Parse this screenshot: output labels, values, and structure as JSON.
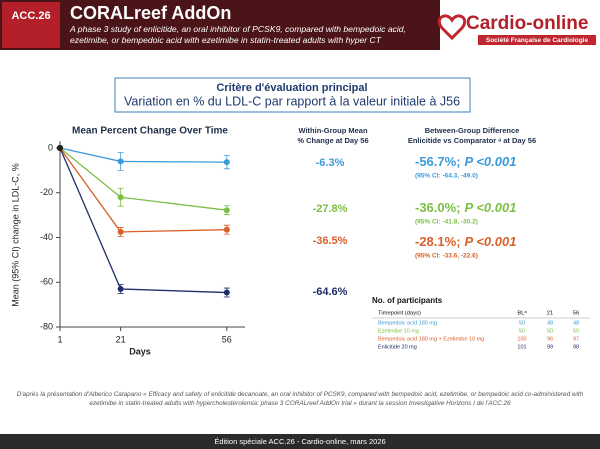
{
  "header": {
    "logo": "ACC.26",
    "title": "CORALreef AddOn",
    "subtitle": "A phase 3 study of enlicitide, an oral inhibitor of PCSK9, compared with bempedoic acid, ezetimibe, or bempedoic acid with ezetimibe in statin-treated adults with hyper CT",
    "brand": "Cardio-online",
    "brand_sub": "Société Française de Cardiologie"
  },
  "box": {
    "title": "Critère d'évaluation principal",
    "subtitle": "Variation en % du LDL-C par rapport à la valeur initiale à J56"
  },
  "chart_data": {
    "type": "line",
    "title": "Mean Percent Change Over Time",
    "y_label": "Mean (95% CI) change in LDL-C, %",
    "x_label": "Days",
    "x": [
      1,
      21,
      56
    ],
    "xlim": [
      1,
      62
    ],
    "xticks": [
      1,
      21,
      56
    ],
    "ylim": [
      -80,
      3
    ],
    "yticks": [
      0,
      -20,
      -40,
      -60,
      -80
    ],
    "series": [
      {
        "name": "Bempedoic acid 180 mg",
        "color": "#3b9bd8",
        "values": [
          0,
          -6,
          -6.3
        ],
        "errors": [
          0,
          4,
          3
        ],
        "value_labels": [
          null,
          null,
          "-6.3%"
        ]
      },
      {
        "name": "Ezetimibe 10 mg",
        "color": "#7cbf45",
        "values": [
          0,
          -22,
          -27.8
        ],
        "errors": [
          0,
          4,
          2
        ],
        "value_labels": [
          null,
          null,
          "-27.8%"
        ]
      },
      {
        "name": "Bempedoic acid 180 mg + Ezetimibe 10 mg",
        "color": "#d8602a",
        "values": [
          0,
          -37.5,
          -36.5
        ],
        "errors": [
          0,
          2,
          2
        ],
        "value_labels": [
          null,
          null,
          "-36.5%"
        ]
      },
      {
        "name": "Enlicitide 20 mg",
        "color": "#1f2e6a",
        "values": [
          0,
          -63,
          -64.6
        ],
        "errors": [
          0,
          2,
          2
        ],
        "value_labels": [
          null,
          null,
          "-64.6%"
        ]
      }
    ]
  },
  "within_group": {
    "header": [
      "Within-Group Mean",
      "% Change at Day 56"
    ]
  },
  "between_group": {
    "header": [
      "Between-Group Difference",
      "Enlicitide vs Comparator ᵃ at Day 56"
    ],
    "rows": [
      {
        "difference": "-56.7%;",
        "p": "P <0.001",
        "ci": "(95% CI: -64.3, -49.0)"
      },
      {
        "difference": "-36.0%;",
        "p": "P <0.001",
        "ci": "(95% CI: -41.8, -30.2)"
      },
      {
        "difference": "-28.1%;",
        "p": "P <0.001",
        "ci": "(95% CI: -33.6, -22.6)"
      }
    ]
  },
  "participants": {
    "title": "No. of participants",
    "columns": [
      "Timepoint (days)",
      "BLᵃ",
      "21",
      "56"
    ],
    "rows": [
      [
        50,
        48,
        48
      ],
      [
        50,
        50,
        50
      ],
      [
        100,
        96,
        97
      ],
      [
        101,
        99,
        98
      ]
    ]
  },
  "citation": "D'après la présentation d'Alberico Catapano « Efficacy and safety of enlicitide decanoate, an oral inhibitor of PCSK9, compared with bempedoic acid, ezetimibe, or bempedoic acid co-administered with ezetimibe in statin-treated adults with hypercholesterolemia: phase 3 CORALreef AddOn trial » durant la session Investigative Horizons I de l'ACC.26",
  "footer": "Édition spéciale ACC.26 - Cardio-online, mars 2026"
}
